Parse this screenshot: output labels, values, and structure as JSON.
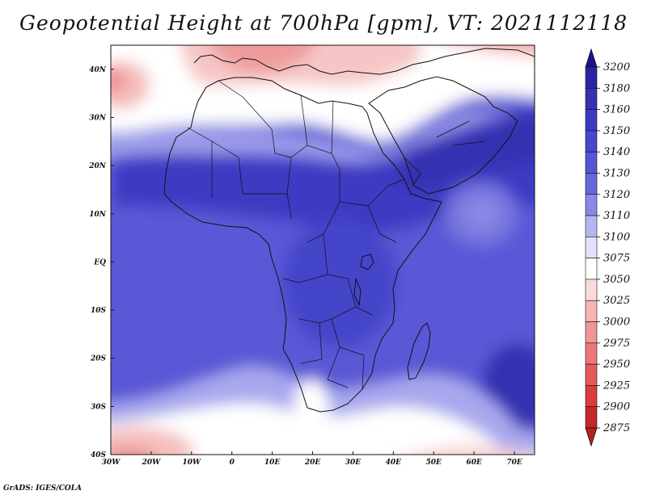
{
  "title": "Geopotential Height at 700hPa [gpm], VT: 2021112118",
  "credit": "GrADS: IGES/COLA",
  "map": {
    "lon_range": [
      -30,
      75
    ],
    "lat_range": [
      -40,
      45
    ],
    "x_ticks": [
      {
        "lon": -30,
        "label": "30W"
      },
      {
        "lon": -20,
        "label": "20W"
      },
      {
        "lon": -10,
        "label": "10W"
      },
      {
        "lon": 0,
        "label": "0"
      },
      {
        "lon": 10,
        "label": "10E"
      },
      {
        "lon": 20,
        "label": "20E"
      },
      {
        "lon": 30,
        "label": "30E"
      },
      {
        "lon": 40,
        "label": "40E"
      },
      {
        "lon": 50,
        "label": "50E"
      },
      {
        "lon": 60,
        "label": "60E"
      },
      {
        "lon": 70,
        "label": "70E"
      }
    ],
    "y_ticks": [
      {
        "lat": 40,
        "label": "40N"
      },
      {
        "lat": 30,
        "label": "30N"
      },
      {
        "lat": 20,
        "label": "20N"
      },
      {
        "lat": 10,
        "label": "10N"
      },
      {
        "lat": 0,
        "label": "EQ"
      },
      {
        "lat": -10,
        "label": "10S"
      },
      {
        "lat": -20,
        "label": "20S"
      },
      {
        "lat": -30,
        "label": "30S"
      },
      {
        "lat": -40,
        "label": "40S"
      }
    ]
  },
  "colorbar": {
    "levels": [
      {
        "label": "3200",
        "color": "#1e1a8c"
      },
      {
        "label": "3180",
        "color": "#2a26a0"
      },
      {
        "label": "3160",
        "color": "#3431b2"
      },
      {
        "label": "3150",
        "color": "#3d3ac2"
      },
      {
        "label": "3140",
        "color": "#4746cc"
      },
      {
        "label": "3130",
        "color": "#5655d4"
      },
      {
        "label": "3120",
        "color": "#6766db"
      },
      {
        "label": "3110",
        "color": "#8988e6"
      },
      {
        "label": "3100",
        "color": "#b6b5f1"
      },
      {
        "label": "3075",
        "color": "#e2e1fb"
      },
      {
        "label": "3050",
        "color": "#ffffff"
      },
      {
        "label": "3025",
        "color": "#fbdada"
      },
      {
        "label": "3000",
        "color": "#f6b4b4"
      },
      {
        "label": "2975",
        "color": "#f19595"
      },
      {
        "label": "2950",
        "color": "#ec7878"
      },
      {
        "label": "2925",
        "color": "#e65a5a"
      },
      {
        "label": "2900",
        "color": "#d93c3c"
      },
      {
        "label": "2875",
        "color": "#c42828"
      }
    ],
    "cap_top_color": "#1a148a",
    "cap_bottom_color": "#b22222"
  }
}
